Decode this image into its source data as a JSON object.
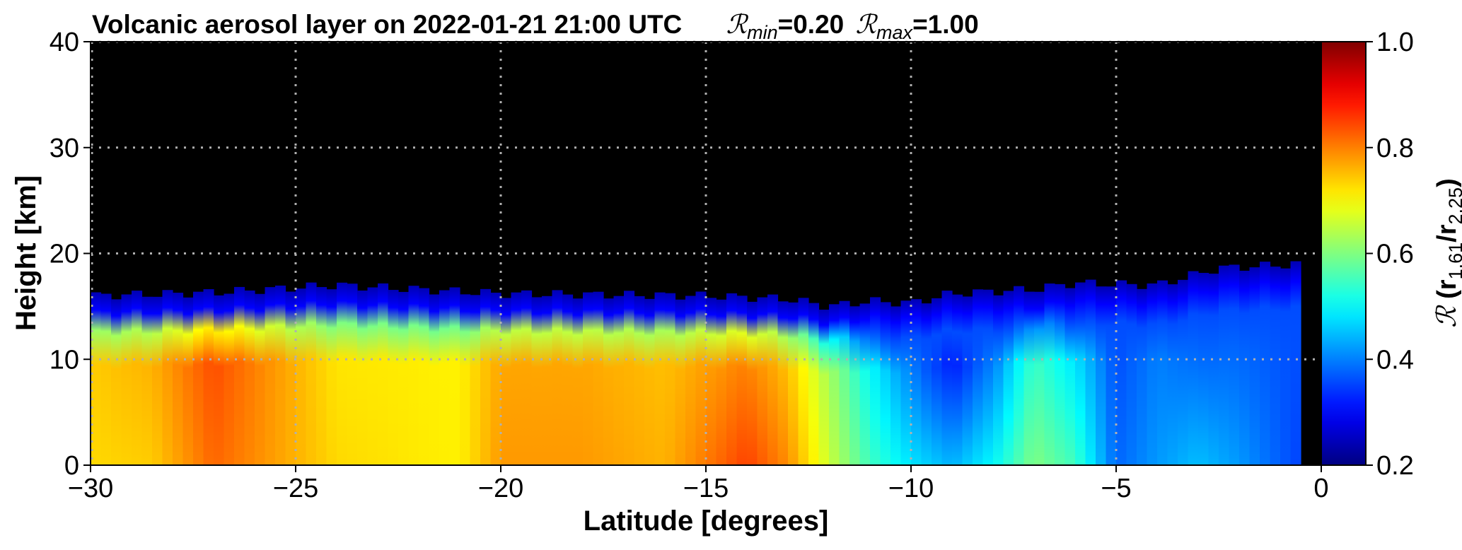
{
  "chart_data": {
    "type": "heatmap",
    "title": {
      "main": "Volcanic aerosol layer on 2022-01-21 21:00 UTC",
      "rmin_symbol": "ℛ",
      "rmin_sub": "min",
      "rmin_value": "=0.20",
      "rmax_symbol": "ℛ",
      "rmax_sub": "max",
      "rmax_value": "=1.00"
    },
    "xlabel": "Latitude [degrees]",
    "ylabel": "Height [km]",
    "xlim": [
      -30,
      0
    ],
    "ylim": [
      0,
      40
    ],
    "xticks": [
      -30,
      -25,
      -20,
      -15,
      -10,
      -5,
      0
    ],
    "xtick_labels": [
      "−30",
      "−25",
      "−20",
      "−15",
      "−10",
      "−5",
      "0"
    ],
    "yticks": [
      0,
      10,
      20,
      30,
      40
    ],
    "ytick_labels": [
      "0",
      "10",
      "20",
      "30",
      "40"
    ],
    "x_data_end": -0.5,
    "grid": true,
    "background_color": "#000000",
    "grid_color": "#b0b0b0",
    "colormap": "jet",
    "colorbar": {
      "label_symbol": "ℛ",
      "label_open": "(r",
      "label_sub1": "1.61",
      "label_slash": "/r",
      "label_sub2": "2.25",
      "label_close": ")",
      "range": [
        0.2,
        1.0
      ],
      "ticks": [
        0.2,
        0.4,
        0.6,
        0.8,
        1.0
      ],
      "tick_labels": [
        "0.2",
        "0.4",
        "0.6",
        "0.8",
        "1.0"
      ]
    },
    "layer_top_km": [
      {
        "lat": -30,
        "top": 16.0
      },
      {
        "lat": -27,
        "top": 16.3
      },
      {
        "lat": -24,
        "top": 17.0
      },
      {
        "lat": -20,
        "top": 16.2
      },
      {
        "lat": -15,
        "top": 16.0
      },
      {
        "lat": -13,
        "top": 15.7
      },
      {
        "lat": -12,
        "top": 15.0
      },
      {
        "lat": -11,
        "top": 15.5
      },
      {
        "lat": -10,
        "top": 15.3
      },
      {
        "lat": -9,
        "top": 16.2
      },
      {
        "lat": -7,
        "top": 16.6
      },
      {
        "lat": -6,
        "top": 17.2
      },
      {
        "lat": -4,
        "top": 17.0
      },
      {
        "lat": -2.5,
        "top": 18.6
      },
      {
        "lat": -0.5,
        "top": 19.0
      }
    ],
    "ratio_profile": [
      {
        "lat": -30,
        "r_low": 0.73,
        "r_mid": 0.74
      },
      {
        "lat": -28.5,
        "r_low": 0.74,
        "r_mid": 0.76
      },
      {
        "lat": -27,
        "r_low": 0.82,
        "r_mid": 0.84
      },
      {
        "lat": -26,
        "r_low": 0.79,
        "r_mid": 0.8
      },
      {
        "lat": -24,
        "r_low": 0.73,
        "r_mid": 0.72
      },
      {
        "lat": -21,
        "r_low": 0.71,
        "r_mid": 0.71
      },
      {
        "lat": -20,
        "r_low": 0.78,
        "r_mid": 0.77
      },
      {
        "lat": -18,
        "r_low": 0.78,
        "r_mid": 0.77
      },
      {
        "lat": -16,
        "r_low": 0.76,
        "r_mid": 0.75
      },
      {
        "lat": -14,
        "r_low": 0.85,
        "r_mid": 0.8
      },
      {
        "lat": -13,
        "r_low": 0.79,
        "r_mid": 0.75
      },
      {
        "lat": -12,
        "r_low": 0.66,
        "r_mid": 0.63
      },
      {
        "lat": -11,
        "r_low": 0.55,
        "r_mid": 0.5
      },
      {
        "lat": -10,
        "r_low": 0.48,
        "r_mid": 0.4
      },
      {
        "lat": -9,
        "r_low": 0.44,
        "r_mid": 0.32
      },
      {
        "lat": -8,
        "r_low": 0.5,
        "r_mid": 0.4
      },
      {
        "lat": -7,
        "r_low": 0.6,
        "r_mid": 0.55
      },
      {
        "lat": -6,
        "r_low": 0.55,
        "r_mid": 0.48
      },
      {
        "lat": -5,
        "r_low": 0.38,
        "r_mid": 0.36
      },
      {
        "lat": -4,
        "r_low": 0.42,
        "r_mid": 0.4
      },
      {
        "lat": -3,
        "r_low": 0.45,
        "r_mid": 0.38
      },
      {
        "lat": -2,
        "r_low": 0.42,
        "r_mid": 0.38
      },
      {
        "lat": -0.5,
        "r_low": 0.35,
        "r_mid": 0.36
      }
    ]
  }
}
